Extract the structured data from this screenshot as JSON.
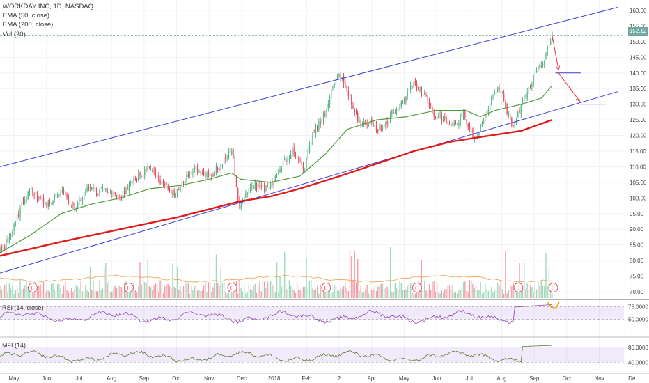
{
  "legend": {
    "title": "WORKDAY INC, 1D, NASDAQ",
    "ema50": "EMA (50, close)",
    "ema200": "EMA (200, close)",
    "vol": "Vol (20)"
  },
  "last_price_label": "152.12",
  "rsi_label": "RSI (14, close)",
  "mfi_label": "MFI (14)",
  "earnings_marker": "E",
  "chart_data": [
    {
      "type": "candlestick",
      "panel": "price",
      "title": "WORKDAY INC, 1D, NASDAQ",
      "x_ticks": [
        "May",
        "Jun",
        "Jul",
        "Aug",
        "Sep",
        "Oct",
        "Nov",
        "Dec",
        "2018",
        "Feb",
        "2",
        "Apr",
        "May",
        "Jun",
        "Jul",
        "Aug",
        "Sep",
        "Oct",
        "Nov",
        "De"
      ],
      "y_ticks": [
        70,
        75,
        80,
        85,
        90,
        95,
        100,
        105,
        110,
        115,
        120,
        125,
        130,
        135,
        140,
        145,
        150,
        155,
        160
      ],
      "ylim": [
        68,
        162
      ],
      "price_path": [
        [
          "2017-04-24",
          83
        ],
        [
          "2017-05-01",
          86
        ],
        [
          "2017-05-08",
          92
        ],
        [
          "2017-05-15",
          98
        ],
        [
          "2017-05-22",
          103
        ],
        [
          "2017-05-31",
          100
        ],
        [
          "2017-06-07",
          97
        ],
        [
          "2017-06-14",
          100
        ],
        [
          "2017-06-21",
          103
        ],
        [
          "2017-06-28",
          99
        ],
        [
          "2017-07-05",
          97
        ],
        [
          "2017-07-12",
          101
        ],
        [
          "2017-07-19",
          104
        ],
        [
          "2017-07-26",
          102
        ],
        [
          "2017-08-02",
          103
        ],
        [
          "2017-08-09",
          101
        ],
        [
          "2017-08-16",
          100
        ],
        [
          "2017-08-23",
          104
        ],
        [
          "2017-08-30",
          106
        ],
        [
          "2017-09-06",
          108
        ],
        [
          "2017-09-13",
          110
        ],
        [
          "2017-09-20",
          106
        ],
        [
          "2017-09-27",
          104
        ],
        [
          "2017-10-04",
          101
        ],
        [
          "2017-10-11",
          103
        ],
        [
          "2017-10-18",
          107
        ],
        [
          "2017-10-25",
          110
        ],
        [
          "2017-11-01",
          108
        ],
        [
          "2017-11-08",
          107
        ],
        [
          "2017-11-15",
          109
        ],
        [
          "2017-11-22",
          112
        ],
        [
          "2017-11-29",
          116
        ],
        [
          "2017-12-01",
          112
        ],
        [
          "2017-12-05",
          99
        ],
        [
          "2017-12-08",
          97
        ],
        [
          "2017-12-15",
          103
        ],
        [
          "2017-12-22",
          104
        ],
        [
          "2017-12-29",
          103
        ],
        [
          "2018-01-05",
          104
        ],
        [
          "2018-01-12",
          108
        ],
        [
          "2018-01-19",
          112
        ],
        [
          "2018-01-26",
          115
        ],
        [
          "2018-02-02",
          112
        ],
        [
          "2018-02-06",
          108
        ],
        [
          "2018-02-12",
          118
        ],
        [
          "2018-02-19",
          123
        ],
        [
          "2018-02-26",
          127
        ],
        [
          "2018-03-02",
          133
        ],
        [
          "2018-03-07",
          137
        ],
        [
          "2018-03-12",
          139
        ],
        [
          "2018-03-19",
          134
        ],
        [
          "2018-03-26",
          127
        ],
        [
          "2018-04-02",
          123
        ],
        [
          "2018-04-09",
          125
        ],
        [
          "2018-04-16",
          122
        ],
        [
          "2018-04-23",
          123
        ],
        [
          "2018-04-30",
          127
        ],
        [
          "2018-05-07",
          129
        ],
        [
          "2018-05-14",
          133
        ],
        [
          "2018-05-21",
          137
        ],
        [
          "2018-05-28",
          133
        ],
        [
          "2018-06-01",
          135
        ],
        [
          "2018-06-04",
          129
        ],
        [
          "2018-06-11",
          126
        ],
        [
          "2018-06-18",
          125
        ],
        [
          "2018-06-25",
          122
        ],
        [
          "2018-07-02",
          124
        ],
        [
          "2018-07-06",
          127
        ],
        [
          "2018-07-09",
          126
        ],
        [
          "2018-07-13",
          122
        ],
        [
          "2018-07-17",
          119
        ],
        [
          "2018-07-23",
          122
        ],
        [
          "2018-07-30",
          128
        ],
        [
          "2018-08-06",
          135
        ],
        [
          "2018-08-13",
          133
        ],
        [
          "2018-08-17",
          128
        ],
        [
          "2018-08-22",
          123
        ],
        [
          "2018-08-27",
          127
        ],
        [
          "2018-08-31",
          130
        ],
        [
          "2018-09-06",
          135
        ],
        [
          "2018-09-11",
          138
        ],
        [
          "2018-09-14",
          140
        ],
        [
          "2018-09-19",
          143
        ],
        [
          "2018-09-24",
          147
        ],
        [
          "2018-09-27",
          150
        ],
        [
          "2018-09-29",
          152.12
        ]
      ],
      "ema50_path": [
        [
          "2017-04-24",
          82.5
        ],
        [
          "2017-05-22",
          88
        ],
        [
          "2017-06-21",
          95
        ],
        [
          "2017-07-19",
          98
        ],
        [
          "2017-08-16",
          100
        ],
        [
          "2017-09-13",
          103
        ],
        [
          "2017-10-11",
          104
        ],
        [
          "2017-11-08",
          106
        ],
        [
          "2017-11-29",
          108
        ],
        [
          "2017-12-08",
          106
        ],
        [
          "2018-01-05",
          105
        ],
        [
          "2018-02-02",
          107
        ],
        [
          "2018-02-26",
          114
        ],
        [
          "2018-03-19",
          122
        ],
        [
          "2018-04-16",
          125
        ],
        [
          "2018-05-14",
          126
        ],
        [
          "2018-06-11",
          128
        ],
        [
          "2018-07-09",
          128
        ],
        [
          "2018-07-23",
          126
        ],
        [
          "2018-08-06",
          128
        ],
        [
          "2018-08-31",
          130
        ],
        [
          "2018-09-19",
          132
        ],
        [
          "2018-09-29",
          136
        ]
      ],
      "ema200_path": [
        [
          "2017-04-24",
          81.5
        ],
        [
          "2017-06-21",
          86
        ],
        [
          "2017-08-16",
          90
        ],
        [
          "2017-10-11",
          94
        ],
        [
          "2017-12-08",
          99
        ],
        [
          "2018-01-05",
          100.5
        ],
        [
          "2018-02-02",
          103
        ],
        [
          "2018-03-12",
          107
        ],
        [
          "2018-04-16",
          111
        ],
        [
          "2018-05-21",
          115
        ],
        [
          "2018-06-25",
          118
        ],
        [
          "2018-07-23",
          119.5
        ],
        [
          "2018-08-31",
          121.5
        ],
        [
          "2018-09-29",
          125
        ]
      ],
      "upper_channel": [
        [
          "2017-04-24",
          110
        ],
        [
          "2018-11-30",
          161
        ]
      ],
      "lower_channel": [
        [
          "2017-04-24",
          76
        ],
        [
          "2018-11-30",
          134
        ]
      ],
      "projection_arrows": [
        [
          [
            "2018-09-29",
            152
          ],
          [
            "2018-10-05",
            141
          ]
        ],
        [
          [
            "2018-10-05",
            140
          ],
          [
            "2018-10-25",
            131
          ]
        ]
      ],
      "horizontal_levels": [
        {
          "value": 140,
          "from": "2018-10-02",
          "to": "2018-10-26"
        },
        {
          "value": 130,
          "from": "2018-10-24",
          "to": "2018-11-19"
        }
      ],
      "last_price": 152.12
    },
    {
      "type": "bar",
      "panel": "volume",
      "title": "Vol (20)",
      "earnings_dates": [
        "2017-05-25",
        "2017-08-24",
        "2017-11-30",
        "2018-02-27",
        "2018-05-24",
        "2018-08-28",
        "2018-09-30"
      ]
    },
    {
      "type": "line",
      "panel": "rsi",
      "title": "RSI (14, close)",
      "y_ticks": [
        50,
        75
      ],
      "ylim": [
        25,
        85
      ]
    },
    {
      "type": "line",
      "panel": "mfi",
      "title": "MFI (14)",
      "y_ticks": [
        40,
        80
      ],
      "ylim": [
        20,
        100
      ]
    }
  ]
}
